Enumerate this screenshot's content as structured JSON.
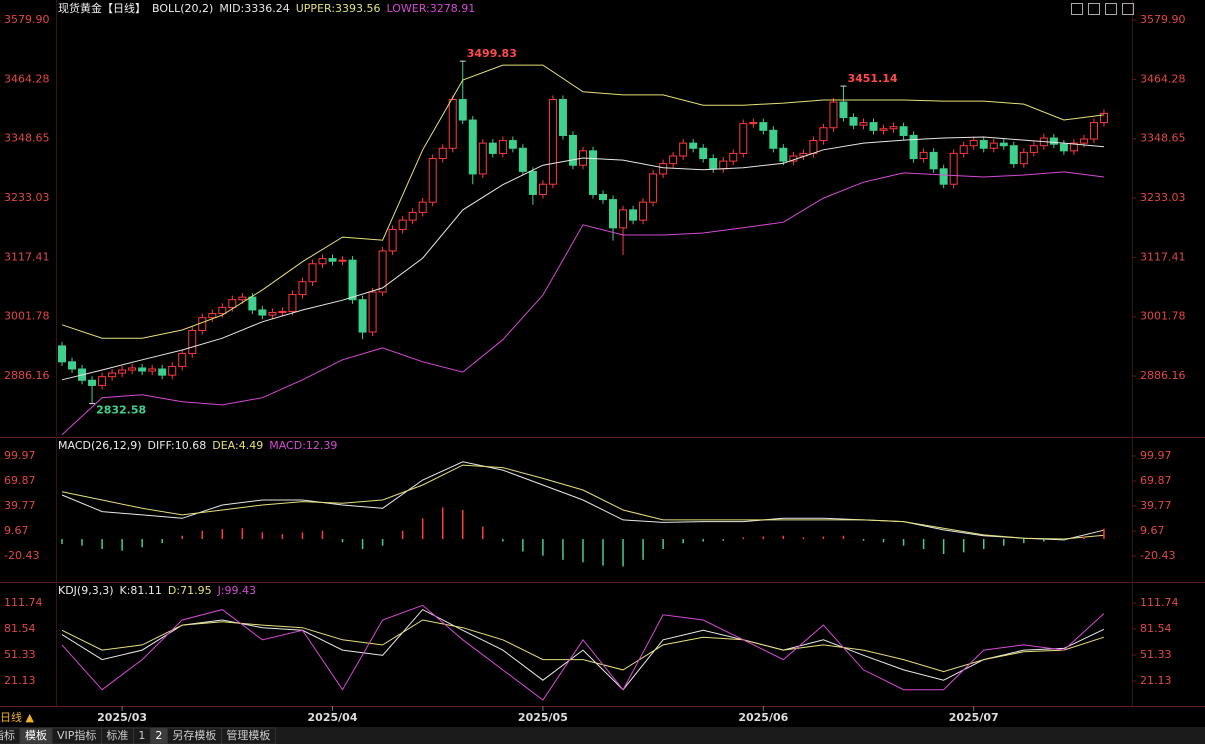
{
  "chart_data": [
    {
      "type": "candlestick",
      "title": "现货黄金【日线】",
      "indicator": "BOLL(20,2)",
      "xlim": [
        -0.4,
        106.8
      ],
      "xticks": [
        {
          "value": 6,
          "label": "2025/03"
        },
        {
          "value": 27,
          "label": "2025/04"
        },
        {
          "value": 48,
          "label": "2025/05"
        },
        {
          "value": 70,
          "label": "2025/06"
        },
        {
          "value": 91,
          "label": "2025/07"
        }
      ],
      "ylim": [
        2771.4,
        3599.4
      ],
      "yticks": [
        {
          "value": 3579.9,
          "label": "3579.90"
        },
        3464.28,
        3348.65,
        3233.03,
        3117.41,
        3001.78,
        2886.16
      ],
      "up_color": "#ff3b3b",
      "down_color": "#3fd08e",
      "open": [
        2945,
        2914,
        2900,
        2878,
        2868,
        2885,
        2892,
        2898,
        2902,
        2896,
        2900,
        2888,
        2905,
        2930,
        2975,
        3000,
        3008,
        3020,
        3035,
        3040,
        3015,
        3005,
        3010,
        3012,
        3045,
        3070,
        3105,
        3115,
        3110,
        3112,
        3035,
        2972,
        3050,
        3130,
        3172,
        3190,
        3205,
        3225,
        3310,
        3330,
        3425,
        3385,
        3280,
        3340,
        3320,
        3345,
        3330,
        3285,
        3240,
        3260,
        3425,
        3355,
        3297,
        3325,
        3240,
        3230,
        3175,
        3210,
        3190,
        3225,
        3280,
        3300,
        3315,
        3340,
        3330,
        3310,
        3290,
        3305,
        3320,
        3378,
        3380,
        3365,
        3330,
        3305,
        3315,
        3320,
        3345,
        3370,
        3420,
        3390,
        3375,
        3380,
        3365,
        3368,
        3372,
        3355,
        3310,
        3322,
        3290,
        3260,
        3320,
        3335,
        3345,
        3330,
        3340,
        3335,
        3300,
        3322,
        3335,
        3350,
        3338,
        3325,
        3340,
        3348,
        3380
      ],
      "high": [
        2953,
        2922,
        2908,
        2886,
        2893,
        2900,
        2906,
        2910,
        2910,
        2908,
        2908,
        2913,
        2938,
        2983,
        3008,
        3016,
        3028,
        3043,
        3048,
        3048,
        3023,
        3018,
        3020,
        3053,
        3078,
        3113,
        3123,
        3123,
        3120,
        3120,
        3043,
        3058,
        3138,
        3180,
        3198,
        3213,
        3233,
        3318,
        3338,
        3433,
        3499.83,
        3393,
        3348,
        3348,
        3353,
        3353,
        3338,
        3293,
        3268,
        3433,
        3433,
        3363,
        3333,
        3333,
        3248,
        3238,
        3218,
        3218,
        3233,
        3288,
        3308,
        3323,
        3348,
        3348,
        3338,
        3318,
        3313,
        3328,
        3386,
        3388,
        3388,
        3373,
        3338,
        3323,
        3328,
        3353,
        3378,
        3428,
        3451.14,
        3398,
        3388,
        3388,
        3376,
        3380,
        3380,
        3363,
        3330,
        3330,
        3298,
        3328,
        3343,
        3353,
        3353,
        3348,
        3348,
        3343,
        3330,
        3343,
        3358,
        3358,
        3346,
        3348,
        3356,
        3388,
        3406
      ],
      "low": [
        2906,
        2892,
        2870,
        2832.58,
        2860,
        2877,
        2884,
        2890,
        2888,
        2888,
        2880,
        2880,
        2897,
        2922,
        2967,
        2992,
        3000,
        3012,
        3027,
        3007,
        2997,
        2997,
        3002,
        3004,
        3037,
        3062,
        3097,
        3102,
        3102,
        3027,
        2958,
        2964,
        3042,
        3122,
        3164,
        3182,
        3197,
        3217,
        3302,
        3322,
        3377,
        3260,
        3272,
        3312,
        3312,
        3322,
        3277,
        3220,
        3232,
        3252,
        3347,
        3289,
        3289,
        3232,
        3222,
        3150,
        3122,
        3182,
        3182,
        3217,
        3272,
        3292,
        3307,
        3322,
        3302,
        3282,
        3282,
        3297,
        3312,
        3370,
        3357,
        3322,
        3297,
        3297,
        3307,
        3312,
        3337,
        3362,
        3382,
        3367,
        3367,
        3357,
        3357,
        3360,
        3347,
        3302,
        3302,
        3282,
        3252,
        3252,
        3312,
        3327,
        3322,
        3322,
        3327,
        3292,
        3292,
        3314,
        3327,
        3330,
        3317,
        3317,
        3332,
        3340,
        3372
      ],
      "close": [
        2914,
        2900,
        2878,
        2868,
        2885,
        2892,
        2898,
        2902,
        2896,
        2900,
        2888,
        2905,
        2930,
        2975,
        3000,
        3008,
        3020,
        3035,
        3040,
        3015,
        3005,
        3010,
        3012,
        3045,
        3070,
        3105,
        3115,
        3110,
        3112,
        3035,
        2972,
        3050,
        3130,
        3172,
        3190,
        3205,
        3225,
        3310,
        3330,
        3425,
        3385,
        3280,
        3340,
        3320,
        3345,
        3330,
        3285,
        3240,
        3260,
        3425,
        3355,
        3297,
        3325,
        3240,
        3230,
        3175,
        3210,
        3190,
        3225,
        3280,
        3300,
        3315,
        3340,
        3330,
        3310,
        3290,
        3305,
        3320,
        3378,
        3380,
        3365,
        3330,
        3305,
        3315,
        3320,
        3345,
        3370,
        3420,
        3390,
        3375,
        3380,
        3365,
        3368,
        3372,
        3355,
        3310,
        3322,
        3290,
        3260,
        3320,
        3335,
        3345,
        3330,
        3340,
        3335,
        3300,
        3322,
        3335,
        3350,
        3338,
        3325,
        3340,
        3348,
        3380,
        3398
      ],
      "series": [
        {
          "name": "MID:3336.24",
          "color": "#e8e8e8",
          "x": [
            0,
            4,
            8,
            12,
            16,
            20,
            24,
            28,
            32,
            36,
            40,
            44,
            48,
            52,
            56,
            60,
            64,
            68,
            72,
            76,
            80,
            84,
            88,
            92,
            96,
            100,
            104
          ],
          "values": [
            2879,
            2898,
            2918,
            2937,
            2960,
            2992,
            3015,
            3034,
            3058,
            3116,
            3210,
            3259,
            3297,
            3311,
            3307,
            3292,
            3288,
            3292,
            3301,
            3327,
            3340,
            3346,
            3350,
            3352,
            3346,
            3340,
            3333
          ]
        },
        {
          "name": "UPPER:3393.56",
          "color": "#e6e07a",
          "x": [
            0,
            4,
            8,
            12,
            16,
            20,
            24,
            28,
            32,
            36,
            40,
            44,
            48,
            52,
            56,
            60,
            64,
            68,
            72,
            76,
            80,
            84,
            88,
            92,
            96,
            100,
            104
          ],
          "values": [
            2986,
            2960,
            2960,
            2976,
            3005,
            3054,
            3109,
            3157,
            3151,
            3327,
            3463,
            3492,
            3492,
            3440,
            3434,
            3434,
            3414,
            3414,
            3418,
            3424,
            3424,
            3424,
            3422,
            3422,
            3416,
            3385,
            3395
          ]
        },
        {
          "name": "LOWER:3278.91",
          "color": "#d54ad5",
          "x": [
            0,
            4,
            8,
            12,
            16,
            20,
            24,
            28,
            32,
            36,
            40,
            44,
            48,
            52,
            56,
            60,
            64,
            68,
            72,
            76,
            80,
            84,
            88,
            92,
            96,
            100,
            104
          ],
          "values": [
            2772,
            2844,
            2850,
            2836,
            2830,
            2844,
            2879,
            2918,
            2941,
            2914,
            2894,
            2957,
            3044,
            3181,
            3161,
            3161,
            3165,
            3175,
            3186,
            3233,
            3264,
            3282,
            3278,
            3274,
            3278,
            3284,
            3274
          ]
        }
      ],
      "annotations": [
        {
          "x": 40,
          "value": 3499.83,
          "color": "#ff4b4b"
        },
        {
          "x": 3,
          "value": 2832.58,
          "color": "#3fd08e"
        },
        {
          "x": 78,
          "value": 3451.14,
          "color": "#ff4b4b"
        }
      ]
    },
    {
      "type": "macd",
      "indicator": "MACD(26,12,9)",
      "ylim": [
        -49.3,
        119.2
      ],
      "yticks": [
        99.97,
        69.87,
        39.77,
        9.67,
        -20.43
      ],
      "series": [
        {
          "name": "DIFF:10.68",
          "color": "#e8e8e8",
          "x": [
            0,
            4,
            8,
            12,
            16,
            20,
            24,
            28,
            32,
            36,
            40,
            44,
            48,
            52,
            56,
            60,
            64,
            68,
            72,
            76,
            80,
            84,
            88,
            92,
            96,
            100,
            104
          ],
          "values": [
            53,
            33,
            29,
            25,
            41,
            47,
            47,
            41,
            37,
            71,
            93,
            83,
            65,
            47,
            23,
            20,
            21,
            21,
            25,
            25,
            23,
            21,
            11,
            4,
            1,
            -1,
            10.68
          ]
        },
        {
          "name": "DEA:4.49",
          "color": "#e6e07a",
          "x": [
            0,
            4,
            8,
            12,
            16,
            20,
            24,
            28,
            32,
            36,
            40,
            44,
            48,
            52,
            56,
            60,
            64,
            68,
            72,
            76,
            80,
            84,
            88,
            92,
            96,
            100,
            104
          ],
          "values": [
            57,
            47,
            37,
            29,
            35,
            41,
            45,
            43,
            47,
            65,
            89,
            86,
            73,
            59,
            35,
            23,
            23,
            23,
            23,
            23,
            23,
            21,
            13,
            5,
            1,
            0,
            4.49
          ]
        },
        {
          "name": "MACD:12.39",
          "color": "#d54ad5",
          "up_color": "#ff3b3b",
          "down_color": "#3fd08e",
          "x": [
            0,
            2,
            4,
            6,
            8,
            10,
            12,
            14,
            16,
            18,
            20,
            22,
            24,
            26,
            28,
            30,
            32,
            34,
            36,
            38,
            40,
            42,
            44,
            46,
            48,
            50,
            52,
            54,
            56,
            58,
            60,
            62,
            64,
            66,
            68,
            70,
            72,
            74,
            76,
            78,
            80,
            82,
            84,
            86,
            88,
            90,
            92,
            94,
            96,
            98,
            100,
            102,
            104
          ],
          "values": [
            -6,
            -8,
            -12,
            -14,
            -10,
            -5,
            4,
            10,
            12,
            13,
            8,
            6,
            8,
            10,
            -4,
            -12,
            -8,
            10,
            25,
            38,
            35,
            15,
            -3,
            -15,
            -20,
            -25,
            -28,
            -32,
            -33,
            -25,
            -12,
            -5,
            -3,
            -2,
            2,
            3,
            4,
            2,
            3,
            4,
            -2,
            -4,
            -8,
            -12,
            -18,
            -16,
            -12,
            -8,
            -5,
            -3,
            -2,
            3,
            12.39
          ]
        }
      ]
    },
    {
      "type": "kdj",
      "indicator": "KDJ(9,3,3)",
      "ylim": [
        -6.75,
        132.6
      ],
      "yticks": [
        111.74,
        81.54,
        51.33,
        21.13
      ],
      "series": [
        {
          "name": "K:81.11",
          "color": "#e8e8e8",
          "x": [
            0,
            4,
            8,
            12,
            16,
            20,
            24,
            28,
            32,
            36,
            40,
            44,
            48,
            52,
            56,
            60,
            64,
            68,
            72,
            76,
            80,
            84,
            88,
            92,
            96,
            100,
            104
          ],
          "values": [
            75,
            46,
            57,
            86,
            92,
            83,
            80,
            57,
            51,
            104,
            80,
            57,
            22,
            57,
            11,
            69,
            80,
            69,
            57,
            69,
            51,
            34,
            22,
            46,
            57,
            59,
            81.11
          ]
        },
        {
          "name": "D:71.95",
          "color": "#e6e07a",
          "x": [
            0,
            4,
            8,
            12,
            16,
            20,
            24,
            28,
            32,
            36,
            40,
            44,
            48,
            52,
            56,
            60,
            64,
            68,
            72,
            76,
            80,
            84,
            88,
            92,
            96,
            100,
            104
          ],
          "values": [
            80,
            57,
            63,
            86,
            90,
            86,
            83,
            69,
            63,
            92,
            83,
            69,
            46,
            46,
            34,
            63,
            72,
            69,
            57,
            63,
            57,
            46,
            32,
            46,
            55,
            57,
            71.95
          ]
        },
        {
          "name": "J:99.43",
          "color": "#d54ad5",
          "x": [
            0,
            4,
            8,
            12,
            16,
            20,
            24,
            28,
            32,
            36,
            40,
            44,
            48,
            52,
            56,
            60,
            64,
            68,
            72,
            76,
            80,
            84,
            88,
            92,
            96,
            100,
            104
          ],
          "values": [
            63,
            11,
            46,
            92,
            104,
            69,
            80,
            11,
            92,
            109,
            69,
            34,
            -1,
            69,
            11,
            98,
            92,
            69,
            46,
            86,
            34,
            11,
            11,
            57,
            63,
            57,
            99.43
          ]
        }
      ]
    }
  ],
  "toolbar": {
    "period": "日线 ▲",
    "tabs": [
      "指标",
      "模板",
      "VIP指标",
      "标准",
      "1",
      "2",
      "另存模板",
      "管理模板"
    ]
  }
}
